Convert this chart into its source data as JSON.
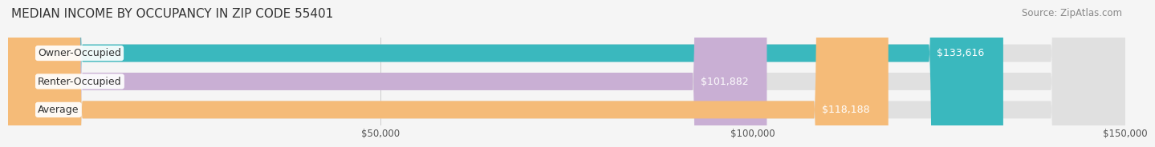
{
  "title": "MEDIAN INCOME BY OCCUPANCY IN ZIP CODE 55401",
  "source": "Source: ZipAtlas.com",
  "categories": [
    "Owner-Occupied",
    "Renter-Occupied",
    "Average"
  ],
  "values": [
    133616,
    101882,
    118188
  ],
  "bar_colors": [
    "#3ab8be",
    "#c9afd4",
    "#f5bb78"
  ],
  "value_labels": [
    "$133,616",
    "$101,882",
    "$118,188"
  ],
  "xlim": [
    0,
    150000
  ],
  "xtick_labels": [
    "$50,000",
    "$100,000",
    "$150,000"
  ],
  "bg_color": "#f5f5f5",
  "bar_bg_color": "#e0e0e0",
  "title_fontsize": 11,
  "source_fontsize": 8.5,
  "bar_label_fontsize": 9,
  "value_fontsize": 9,
  "bar_height": 0.62
}
